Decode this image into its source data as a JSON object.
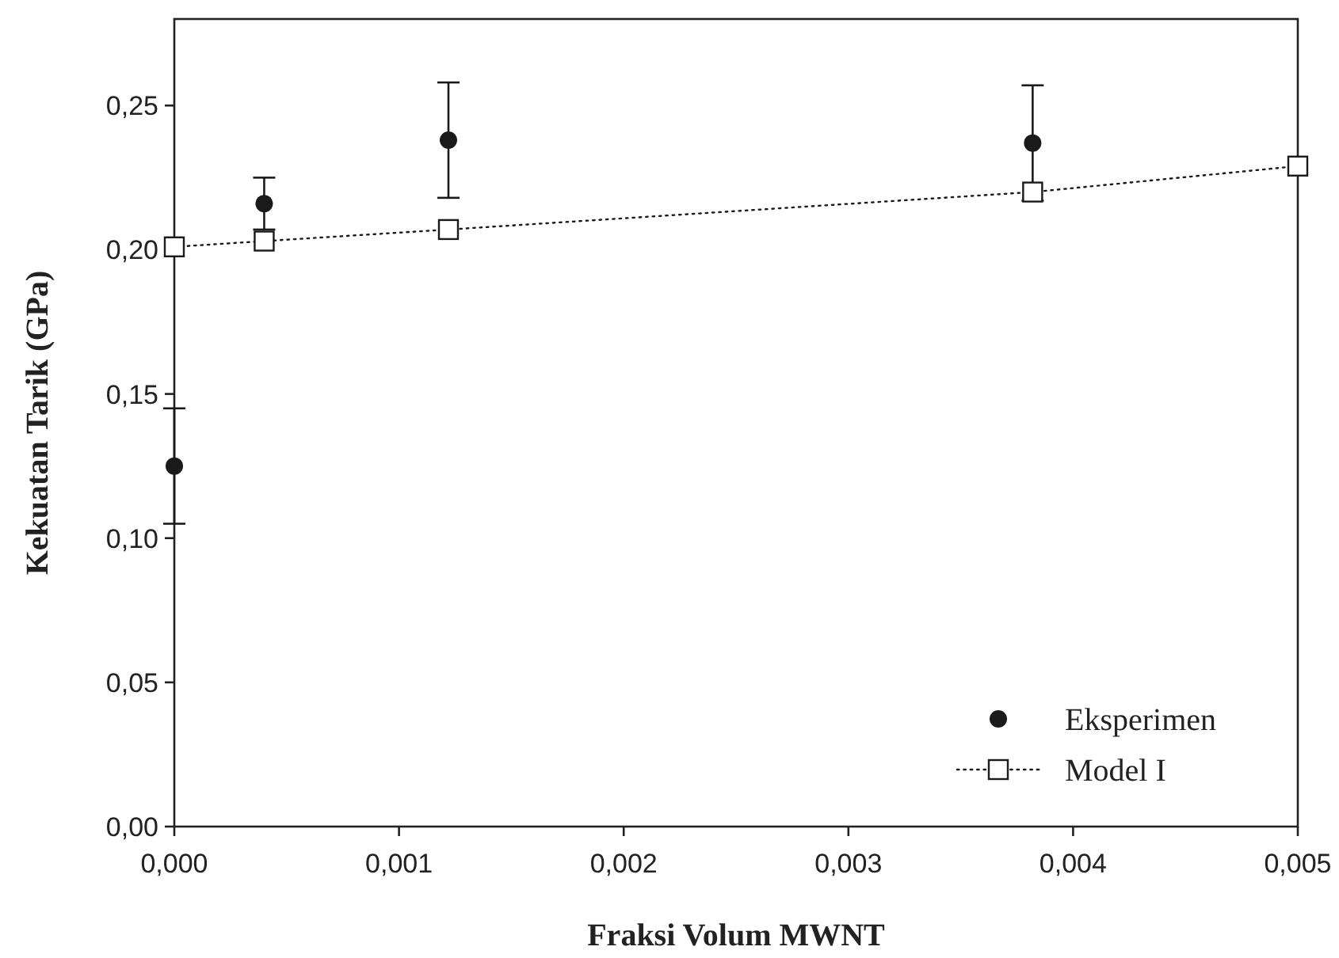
{
  "chart_data": {
    "type": "scatter",
    "xlabel": "Fraksi Volum MWNT",
    "ylabel": "Kekuatan Tarik (GPa)",
    "xlim": [
      0,
      0.005
    ],
    "ylim": [
      0,
      0.28
    ],
    "xticks": [
      {
        "value": 0,
        "label": "0,000"
      },
      {
        "value": 0.001,
        "label": "0,001"
      },
      {
        "value": 0.002,
        "label": "0,002"
      },
      {
        "value": 0.003,
        "label": "0,003"
      },
      {
        "value": 0.004,
        "label": "0,004"
      },
      {
        "value": 0.005,
        "label": "0,005"
      }
    ],
    "yticks": [
      {
        "value": 0,
        "label": "0,00"
      },
      {
        "value": 0.05,
        "label": "0,05"
      },
      {
        "value": 0.1,
        "label": "0,10"
      },
      {
        "value": 0.15,
        "label": "0,15"
      },
      {
        "value": 0.2,
        "label": "0,20"
      },
      {
        "value": 0.25,
        "label": "0,25"
      }
    ],
    "grid": false,
    "legend": "bottom right",
    "series": [
      {
        "name": "Eksperimen",
        "color": "#1a1a1a",
        "marker": "circle",
        "x": [
          0,
          0.0004,
          0.00122,
          0.00382
        ],
        "values": [
          0.125,
          0.216,
          0.238,
          0.237
        ],
        "errors": [
          0.02,
          0.009,
          0.02,
          0.02
        ]
      },
      {
        "name": "Model I",
        "type": "line",
        "color": "#1a1a1a",
        "marker": "square",
        "line_style": "dotted",
        "x": [
          0,
          0.0004,
          0.00122,
          0.00382,
          0.005
        ],
        "values": [
          0.201,
          0.203,
          0.207,
          0.22,
          0.229
        ]
      }
    ]
  }
}
